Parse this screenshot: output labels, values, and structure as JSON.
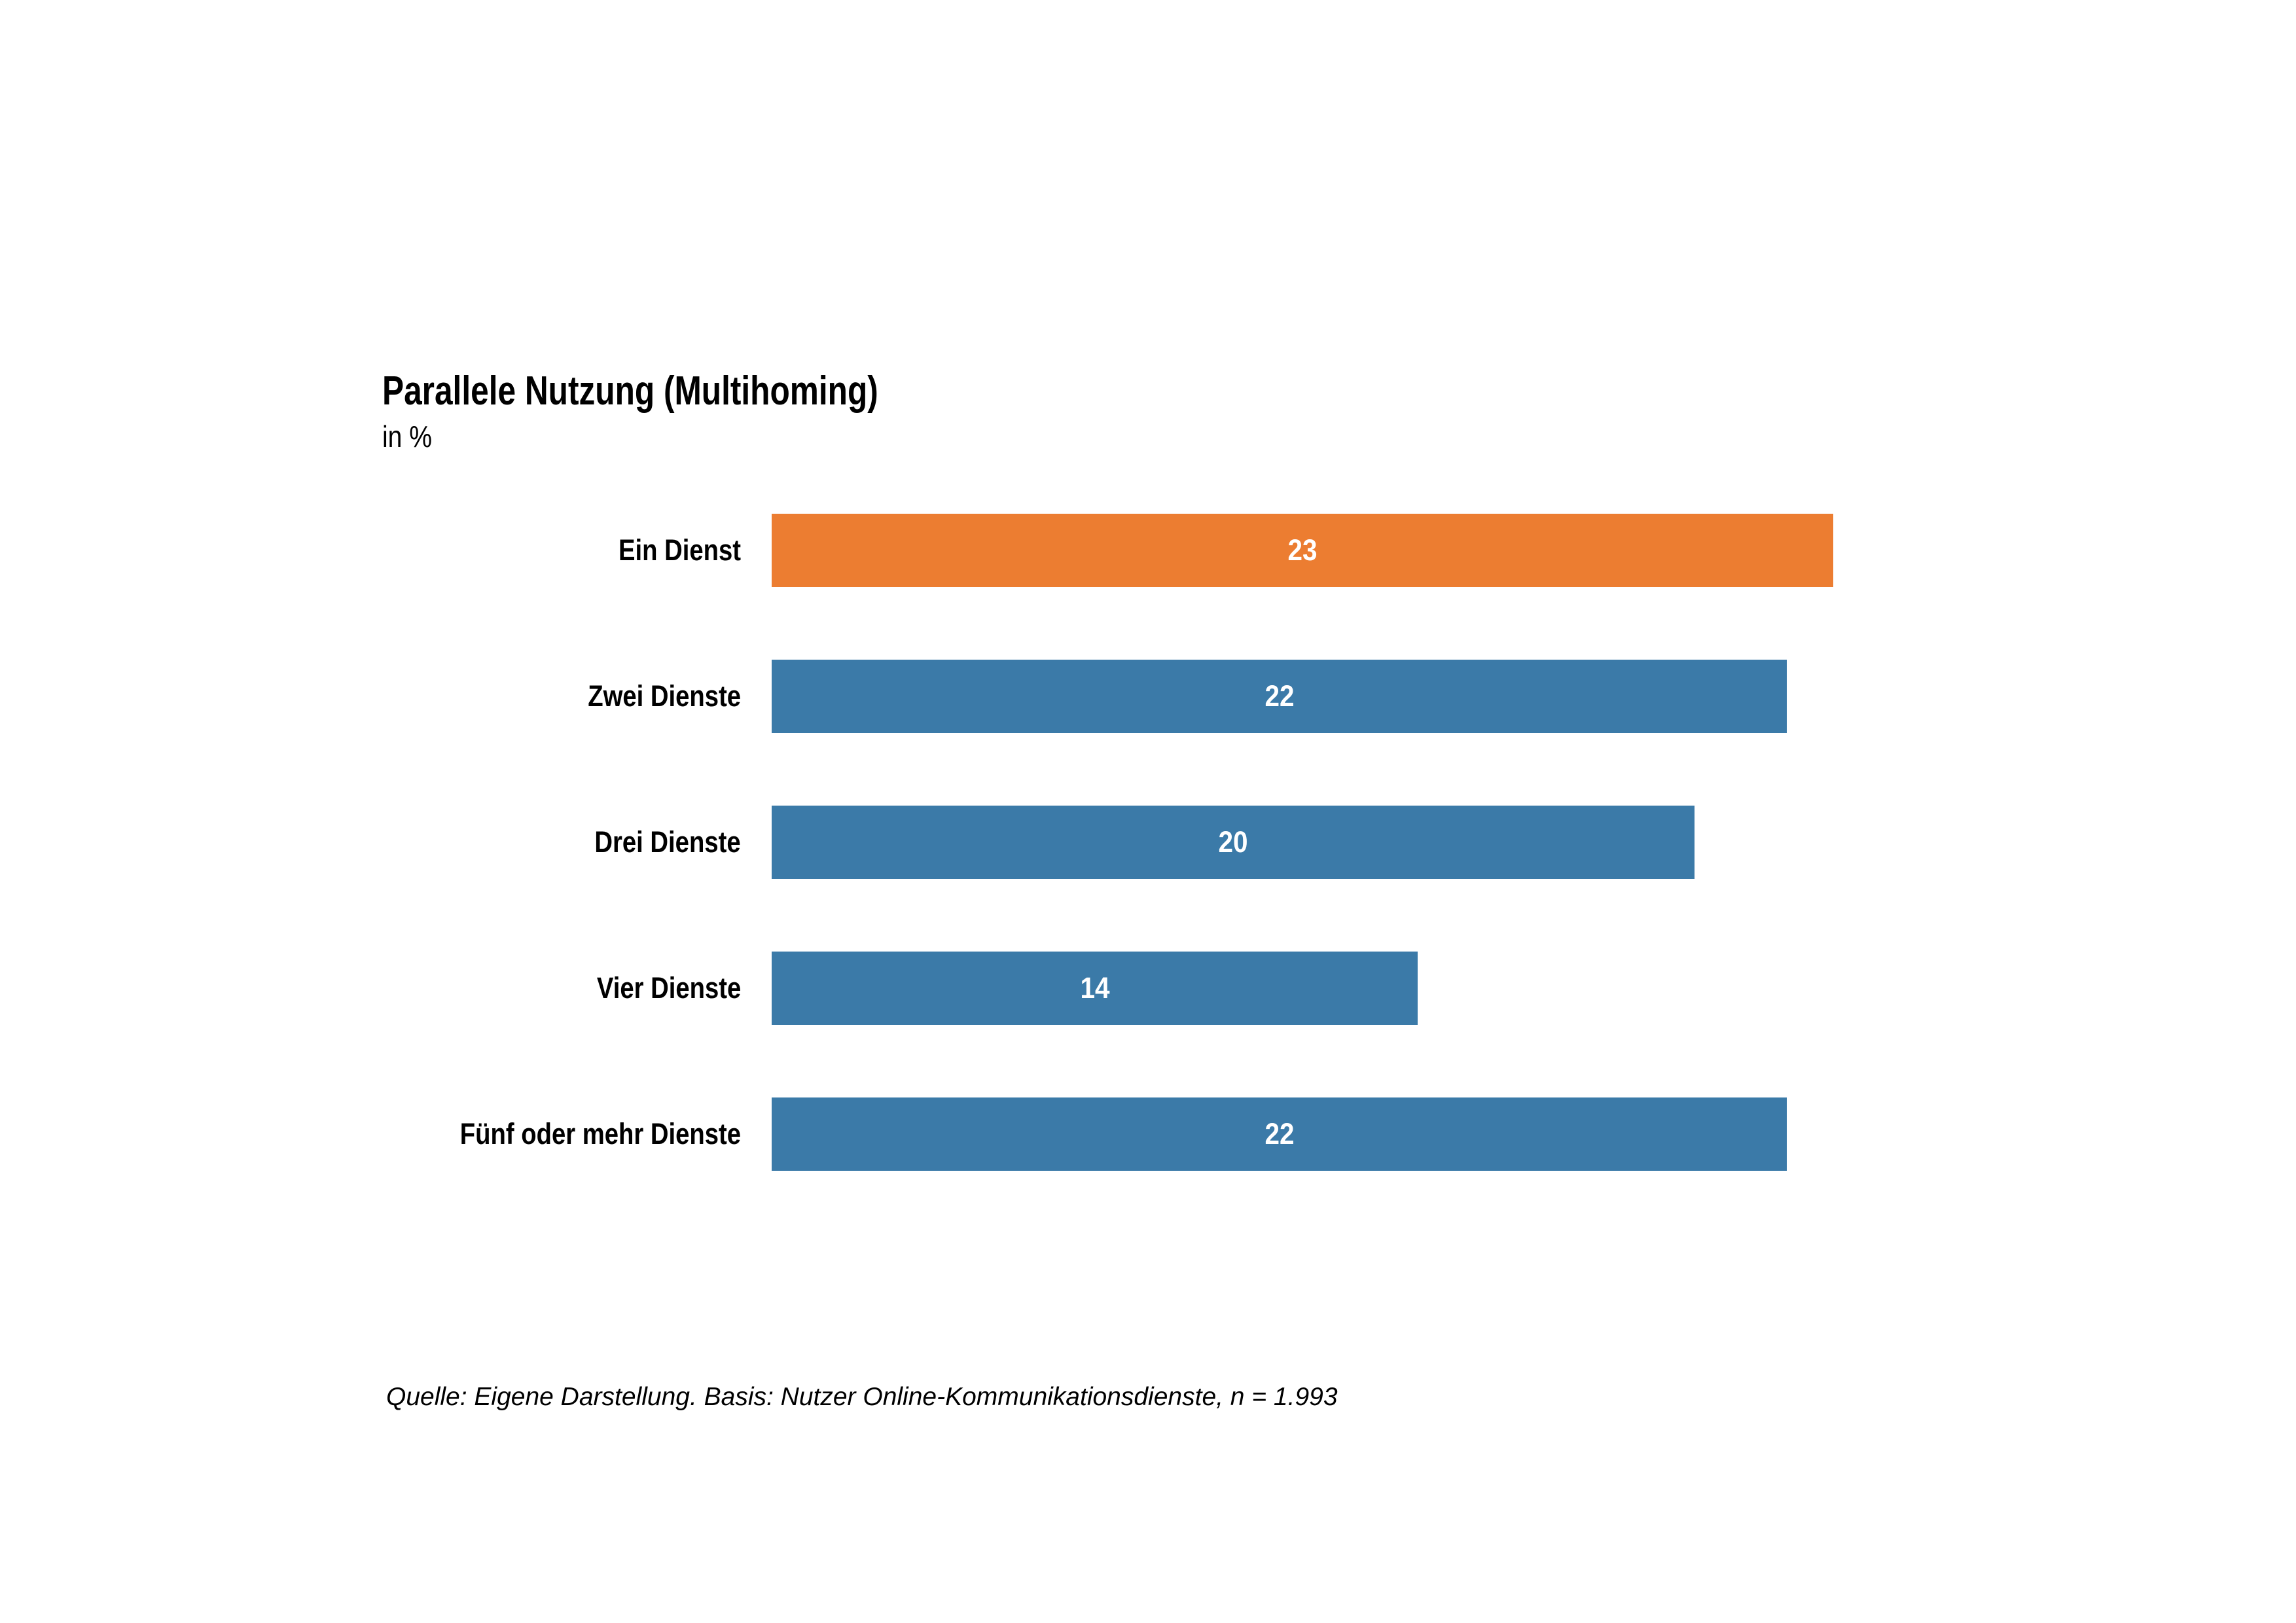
{
  "chart_data": {
    "type": "bar",
    "orientation": "horizontal",
    "title": "Parallele Nutzung (Multihoming)",
    "unit_label": "in %",
    "categories": [
      "Ein Dienst",
      "Zwei Dienste",
      "Drei Dienste",
      "Vier Dienste",
      "Fünf oder mehr Dienste"
    ],
    "values": [
      23,
      22,
      20,
      14,
      22
    ],
    "bar_colors": [
      "#EC7D31",
      "#3B7AA8",
      "#3B7AA8",
      "#3B7AA8",
      "#3B7AA8"
    ],
    "highlight_index": 0,
    "xlim": [
      0,
      23
    ],
    "value_label_color": "#FFFFFF",
    "category_label_color": "#000000",
    "grid": "off",
    "legend": "none",
    "source": "Quelle: Eigene Darstellung. Basis: Nutzer Online-Kommunikationsdienste, n = 1.993"
  }
}
